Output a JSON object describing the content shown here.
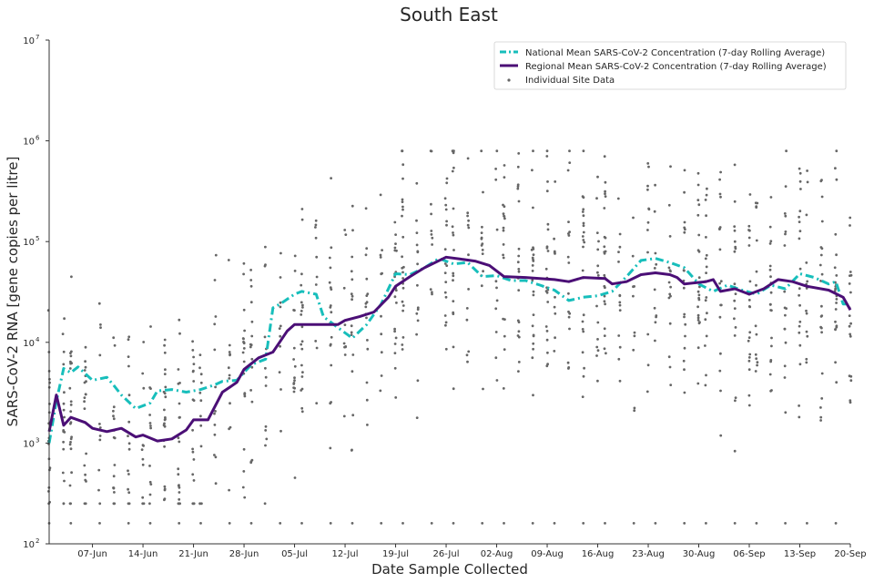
{
  "chart_data": {
    "type": "line",
    "title": "South East",
    "xlabel": "Date Sample Collected",
    "ylabel": "SARS-CoV-2 RNA [gene copies per litre]",
    "yscale": "log",
    "ylim": [
      100,
      10000000
    ],
    "ytick_labels": [
      {
        "base": "10",
        "exp": "2",
        "value": 100
      },
      {
        "base": "10",
        "exp": "3",
        "value": 1000
      },
      {
        "base": "10",
        "exp": "4",
        "value": 10000
      },
      {
        "base": "10",
        "exp": "5",
        "value": 100000
      },
      {
        "base": "10",
        "exp": "6",
        "value": 1000000
      },
      {
        "base": "10",
        "exp": "7",
        "value": 10000000
      }
    ],
    "xlim": [
      "2021-06-01",
      "2021-09-20"
    ],
    "xticks": [
      {
        "date": "2021-06-07",
        "label": "07-Jun"
      },
      {
        "date": "2021-06-14",
        "label": "14-Jun"
      },
      {
        "date": "2021-06-21",
        "label": "21-Jun"
      },
      {
        "date": "2021-06-28",
        "label": "28-Jun"
      },
      {
        "date": "2021-07-05",
        "label": "05-Jul"
      },
      {
        "date": "2021-07-12",
        "label": "12-Jul"
      },
      {
        "date": "2021-07-19",
        "label": "19-Jul"
      },
      {
        "date": "2021-07-26",
        "label": "26-Jul"
      },
      {
        "date": "2021-08-02",
        "label": "02-Aug"
      },
      {
        "date": "2021-08-09",
        "label": "09-Aug"
      },
      {
        "date": "2021-08-16",
        "label": "16-Aug"
      },
      {
        "date": "2021-08-23",
        "label": "23-Aug"
      },
      {
        "date": "2021-08-30",
        "label": "30-Aug"
      },
      {
        "date": "2021-09-06",
        "label": "06-Sep"
      },
      {
        "date": "2021-09-13",
        "label": "13-Sep"
      },
      {
        "date": "2021-09-20",
        "label": "20-Sep"
      }
    ],
    "grid": false,
    "legend_position": "top-right",
    "series": [
      {
        "name": "National Mean SARS-CoV-2 Concentration (7-day Rolling Average)",
        "color": "#17bebb",
        "style": "dashdot",
        "points": [
          [
            "2021-06-01",
            1000
          ],
          [
            "2021-06-02",
            2600
          ],
          [
            "2021-06-03",
            5500
          ],
          [
            "2021-06-04",
            5000
          ],
          [
            "2021-06-05",
            5700
          ],
          [
            "2021-06-07",
            4200
          ],
          [
            "2021-06-09",
            4500
          ],
          [
            "2021-06-10",
            3700
          ],
          [
            "2021-06-11",
            3000
          ],
          [
            "2021-06-13",
            2200
          ],
          [
            "2021-06-15",
            2500
          ],
          [
            "2021-06-16",
            3300
          ],
          [
            "2021-06-18",
            3400
          ],
          [
            "2021-06-20",
            3200
          ],
          [
            "2021-06-22",
            3400
          ],
          [
            "2021-06-24",
            3800
          ],
          [
            "2021-06-25",
            4100
          ],
          [
            "2021-06-27",
            4200
          ],
          [
            "2021-06-29",
            6000
          ],
          [
            "2021-07-01",
            6800
          ],
          [
            "2021-07-02",
            22000
          ],
          [
            "2021-07-03",
            24000
          ],
          [
            "2021-07-05",
            30000
          ],
          [
            "2021-07-06",
            32000
          ],
          [
            "2021-07-08",
            30000
          ],
          [
            "2021-07-09",
            18000
          ],
          [
            "2021-07-11",
            14000
          ],
          [
            "2021-07-13",
            11000
          ],
          [
            "2021-07-15",
            15000
          ],
          [
            "2021-07-17",
            24000
          ],
          [
            "2021-07-19",
            48000
          ],
          [
            "2021-07-21",
            47000
          ],
          [
            "2021-07-23",
            55000
          ],
          [
            "2021-07-25",
            68000
          ],
          [
            "2021-07-27",
            60000
          ],
          [
            "2021-07-29",
            62000
          ],
          [
            "2021-07-31",
            45000
          ],
          [
            "2021-08-02",
            46000
          ],
          [
            "2021-08-04",
            41000
          ],
          [
            "2021-08-06",
            41000
          ],
          [
            "2021-08-08",
            37000
          ],
          [
            "2021-08-10",
            33000
          ],
          [
            "2021-08-12",
            26000
          ],
          [
            "2021-08-14",
            28000
          ],
          [
            "2021-08-16",
            29000
          ],
          [
            "2021-08-18",
            32000
          ],
          [
            "2021-08-20",
            45000
          ],
          [
            "2021-08-22",
            65000
          ],
          [
            "2021-08-24",
            68000
          ],
          [
            "2021-08-26",
            62000
          ],
          [
            "2021-08-28",
            55000
          ],
          [
            "2021-08-30",
            38000
          ],
          [
            "2021-09-01",
            32000
          ],
          [
            "2021-09-03",
            37000
          ],
          [
            "2021-09-05",
            33000
          ],
          [
            "2021-09-07",
            30000
          ],
          [
            "2021-09-09",
            37000
          ],
          [
            "2021-09-11",
            34000
          ],
          [
            "2021-09-13",
            48000
          ],
          [
            "2021-09-15",
            44000
          ],
          [
            "2021-09-17",
            38000
          ],
          [
            "2021-09-18",
            40000
          ],
          [
            "2021-09-19",
            24000
          ],
          [
            "2021-09-20",
            24000
          ]
        ]
      },
      {
        "name": "Regional Mean SARS-CoV-2 Concentration (7-day Rolling Average)",
        "color": "#4b0f76",
        "style": "solid",
        "points": [
          [
            "2021-06-01",
            1300
          ],
          [
            "2021-06-02",
            3000
          ],
          [
            "2021-06-03",
            1500
          ],
          [
            "2021-06-04",
            1800
          ],
          [
            "2021-06-06",
            1600
          ],
          [
            "2021-06-07",
            1400
          ],
          [
            "2021-06-09",
            1300
          ],
          [
            "2021-06-11",
            1400
          ],
          [
            "2021-06-13",
            1150
          ],
          [
            "2021-06-14",
            1200
          ],
          [
            "2021-06-16",
            1050
          ],
          [
            "2021-06-18",
            1100
          ],
          [
            "2021-06-20",
            1350
          ],
          [
            "2021-06-21",
            1700
          ],
          [
            "2021-06-23",
            1700
          ],
          [
            "2021-06-25",
            3200
          ],
          [
            "2021-06-27",
            4000
          ],
          [
            "2021-06-28",
            5400
          ],
          [
            "2021-06-30",
            7000
          ],
          [
            "2021-07-02",
            8000
          ],
          [
            "2021-07-04",
            13000
          ],
          [
            "2021-07-05",
            15000
          ],
          [
            "2021-07-07",
            15000
          ],
          [
            "2021-07-09",
            15000
          ],
          [
            "2021-07-11",
            15000
          ],
          [
            "2021-07-12",
            16500
          ],
          [
            "2021-07-14",
            18000
          ],
          [
            "2021-07-16",
            20000
          ],
          [
            "2021-07-18",
            28000
          ],
          [
            "2021-07-19",
            36000
          ],
          [
            "2021-07-21",
            45000
          ],
          [
            "2021-07-23",
            55000
          ],
          [
            "2021-07-26",
            70000
          ],
          [
            "2021-07-28",
            67000
          ],
          [
            "2021-07-30",
            64000
          ],
          [
            "2021-08-01",
            58000
          ],
          [
            "2021-08-03",
            45000
          ],
          [
            "2021-08-06",
            44000
          ],
          [
            "2021-08-08",
            43000
          ],
          [
            "2021-08-10",
            42000
          ],
          [
            "2021-08-12",
            40000
          ],
          [
            "2021-08-14",
            44000
          ],
          [
            "2021-08-17",
            43000
          ],
          [
            "2021-08-18",
            38000
          ],
          [
            "2021-08-20",
            40000
          ],
          [
            "2021-08-22",
            47000
          ],
          [
            "2021-08-24",
            49000
          ],
          [
            "2021-08-26",
            47000
          ],
          [
            "2021-08-27",
            44000
          ],
          [
            "2021-08-28",
            38000
          ],
          [
            "2021-08-31",
            40000
          ],
          [
            "2021-09-01",
            42000
          ],
          [
            "2021-09-02",
            32000
          ],
          [
            "2021-09-04",
            34000
          ],
          [
            "2021-09-06",
            30000
          ],
          [
            "2021-09-08",
            34000
          ],
          [
            "2021-09-10",
            42000
          ],
          [
            "2021-09-12",
            40000
          ],
          [
            "2021-09-14",
            36000
          ],
          [
            "2021-09-17",
            33000
          ],
          [
            "2021-09-19",
            28000
          ],
          [
            "2021-09-20",
            21000
          ]
        ]
      },
      {
        "name": "Individual Site Data",
        "color": "#666666",
        "style": "points",
        "sampling_days": [
          "2021-06-01",
          "2021-06-03",
          "2021-06-04",
          "2021-06-06",
          "2021-06-08",
          "2021-06-10",
          "2021-06-12",
          "2021-06-14",
          "2021-06-15",
          "2021-06-17",
          "2021-06-19",
          "2021-06-21",
          "2021-06-22",
          "2021-06-24",
          "2021-06-26",
          "2021-06-28",
          "2021-06-29",
          "2021-07-01",
          "2021-07-03",
          "2021-07-05",
          "2021-07-06",
          "2021-07-08",
          "2021-07-10",
          "2021-07-12",
          "2021-07-13",
          "2021-07-15",
          "2021-07-17",
          "2021-07-19",
          "2021-07-20",
          "2021-07-22",
          "2021-07-24",
          "2021-07-26",
          "2021-07-27",
          "2021-07-29",
          "2021-07-31",
          "2021-08-02",
          "2021-08-03",
          "2021-08-05",
          "2021-08-07",
          "2021-08-09",
          "2021-08-10",
          "2021-08-12",
          "2021-08-14",
          "2021-08-16",
          "2021-08-17",
          "2021-08-19",
          "2021-08-21",
          "2021-08-23",
          "2021-08-24",
          "2021-08-26",
          "2021-08-28",
          "2021-08-30",
          "2021-08-31",
          "2021-09-02",
          "2021-09-04",
          "2021-09-06",
          "2021-09-07",
          "2021-09-09",
          "2021-09-11",
          "2021-09-13",
          "2021-09-14",
          "2021-09-16",
          "2021-09-18",
          "2021-09-20"
        ],
        "limit_of_detection": 160
      }
    ]
  }
}
